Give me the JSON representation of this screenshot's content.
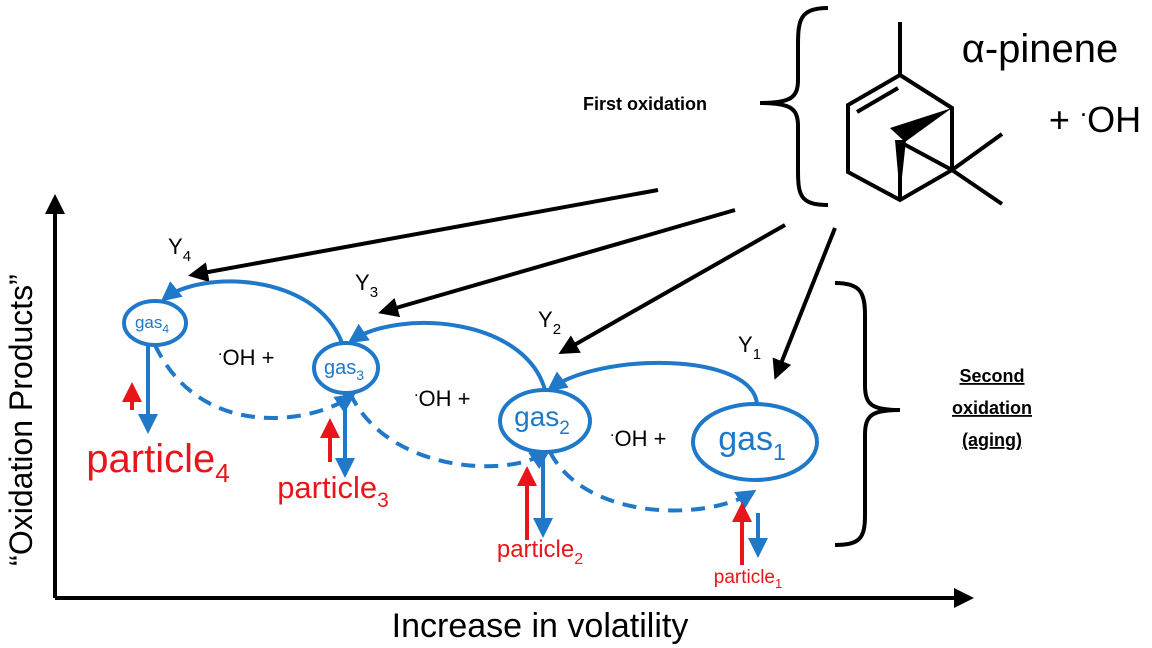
{
  "reactants": {
    "precursor": "α-pinene",
    "oxidant": {
      "sign": "+",
      "dot": ".",
      "species": "OH"
    }
  },
  "first_oxidation": "First oxidation",
  "second_oxidation": [
    "Second",
    "oxidation",
    "(aging)"
  ],
  "yields": [
    {
      "base": "Y",
      "sub": "4"
    },
    {
      "base": "Y",
      "sub": "3"
    },
    {
      "base": "Y",
      "sub": "2"
    },
    {
      "base": "Y",
      "sub": "1"
    }
  ],
  "gases": [
    {
      "base": "gas",
      "sub": "4"
    },
    {
      "base": "gas",
      "sub": "3"
    },
    {
      "base": "gas",
      "sub": "2"
    },
    {
      "base": "gas",
      "sub": "1"
    }
  ],
  "particles": [
    {
      "base": "particle",
      "sub": "4"
    },
    {
      "base": "particle",
      "sub": "3"
    },
    {
      "base": "particle",
      "sub": "2"
    },
    {
      "base": "particle",
      "sub": "1"
    }
  ],
  "oh_steps": [
    {
      "dot": ".",
      "text": "OH +"
    },
    {
      "dot": ".",
      "text": "OH +"
    },
    {
      "dot": ".",
      "text": "OH +"
    }
  ],
  "axes": {
    "y_label": "“Oxidation Products”",
    "x_label": "Increase in volatility"
  }
}
